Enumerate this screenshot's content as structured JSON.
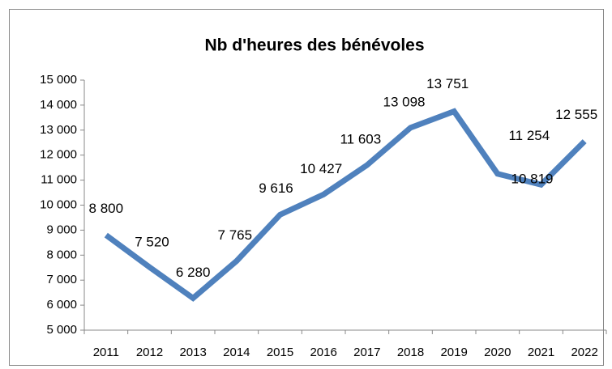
{
  "chart_data": {
    "type": "line",
    "title": "Nb d'heures des bénévoles",
    "categories": [
      "2011",
      "2012",
      "2013",
      "2014",
      "2015",
      "2016",
      "2017",
      "2018",
      "2019",
      "2020",
      "2021",
      "2022"
    ],
    "series": [
      {
        "name": "Nb d'heures",
        "color": "#4f81bd",
        "values": [
          8800,
          7520,
          6280,
          7765,
          9616,
          10427,
          11603,
          13098,
          13751,
          11254,
          10819,
          12555
        ],
        "value_labels": [
          "8 800",
          "7 520",
          "6 280",
          "7 765",
          "9 616",
          "10 427",
          "11 603",
          "13 098",
          "13 751",
          "11 254",
          "10 819",
          "12 555"
        ]
      }
    ],
    "ylim": [
      5000,
      15000
    ],
    "yticks": [
      {
        "value": 5000,
        "label": "5 000"
      },
      {
        "value": 6000,
        "label": "6 000"
      },
      {
        "value": 7000,
        "label": "7 000"
      },
      {
        "value": 8000,
        "label": "8 000"
      },
      {
        "value": 9000,
        "label": "9 000"
      },
      {
        "value": 10000,
        "label": "10 000"
      },
      {
        "value": 11000,
        "label": "11 000"
      },
      {
        "value": 12000,
        "label": "12 000"
      },
      {
        "value": 13000,
        "label": "13 000"
      },
      {
        "value": 14000,
        "label": "14 000"
      },
      {
        "value": 15000,
        "label": "15 000"
      }
    ],
    "grid": false
  }
}
